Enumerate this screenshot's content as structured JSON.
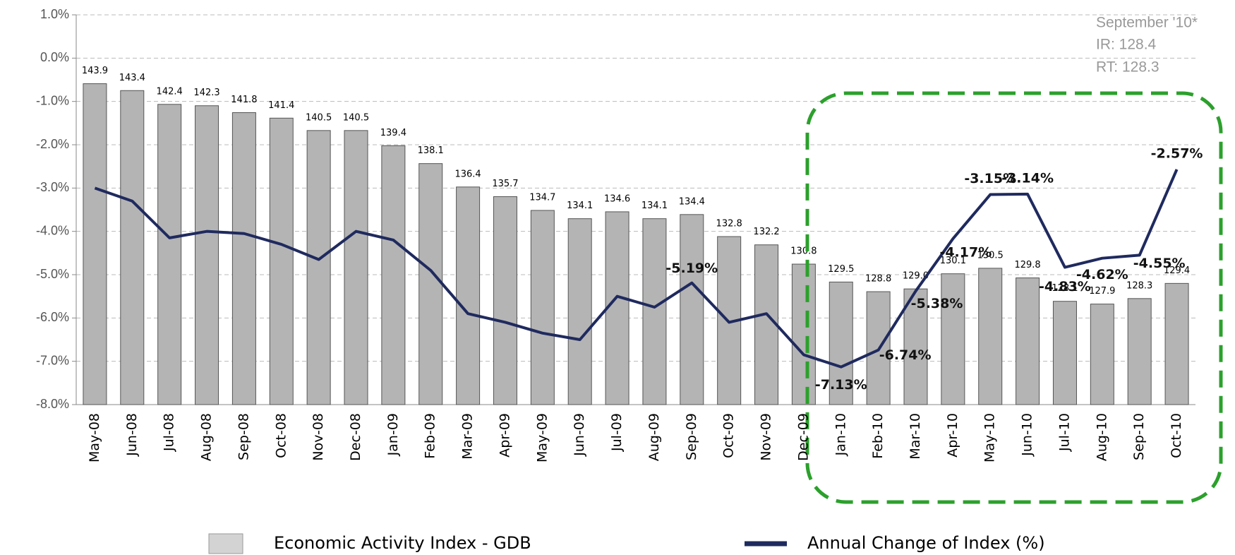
{
  "chart_data": {
    "type": "bar_line",
    "categories": [
      "May-08",
      "Jun-08",
      "Jul-08",
      "Aug-08",
      "Sep-08",
      "Oct-08",
      "Nov-08",
      "Dec-08",
      "Jan-09",
      "Feb-09",
      "Mar-09",
      "Apr-09",
      "May-09",
      "Jun-09",
      "Jul-09",
      "Aug-09",
      "Sep-09",
      "Oct-09",
      "Nov-09",
      "Dec-09",
      "Jan-10",
      "Feb-10",
      "Mar-10",
      "Apr-10",
      "May-10",
      "Jun-10",
      "Jul-10",
      "Aug-10",
      "Sep-10",
      "Oct-10"
    ],
    "series": [
      {
        "name": "Economic Activity Index - GDB",
        "type": "bar",
        "axis": "y2",
        "color": "#b4b4b4",
        "values": [
          143.9,
          143.4,
          142.4,
          142.3,
          141.8,
          141.4,
          140.5,
          140.5,
          139.4,
          138.1,
          136.4,
          135.7,
          134.7,
          134.1,
          134.6,
          134.1,
          134.4,
          132.8,
          132.2,
          130.8,
          129.5,
          128.8,
          129.0,
          130.1,
          130.5,
          129.8,
          128.1,
          127.9,
          128.3,
          129.4
        ],
        "value_labels": [
          "143.9",
          "143.4",
          "142.4",
          "142.3",
          "141.8",
          "141.4",
          "140.5",
          "140.5",
          "139.4",
          "138.1",
          "136.4",
          "135.7",
          "134.7",
          "134.1",
          "134.6",
          "134.1",
          "134.4",
          "132.8",
          "132.2",
          "130.8",
          "129.5",
          "128.8",
          "129.0",
          "130.1",
          "130.5",
          "129.8",
          "128.1",
          "127.9",
          "128.3",
          "129.4"
        ]
      },
      {
        "name": "Annual Change of Index (%)",
        "type": "line",
        "color": "#1f2a5e",
        "values": [
          -3.0,
          -3.3,
          -4.15,
          -4.0,
          -4.05,
          -4.3,
          -4.65,
          -4.0,
          -4.2,
          -4.9,
          -5.9,
          -6.1,
          -6.35,
          -6.5,
          -5.5,
          -5.75,
          -5.19,
          -6.1,
          -5.9,
          -6.85,
          -7.13,
          -6.74,
          -5.38,
          -4.17,
          -3.15,
          -3.14,
          -4.83,
          -4.62,
          -4.55,
          -2.57
        ],
        "value_labels": [
          null,
          null,
          null,
          null,
          null,
          null,
          null,
          null,
          null,
          null,
          null,
          null,
          null,
          null,
          null,
          null,
          "-5.19%",
          null,
          null,
          null,
          "-7.13%",
          "-6.74%",
          "-5.38%",
          "-4.17%",
          "-3.15%",
          "-3.14%",
          "-4.83%",
          "-4.62%",
          "-4.55%",
          "-2.57%"
        ]
      }
    ],
    "ylim": [
      -8.0,
      1.0
    ],
    "yticks": [
      {
        "value": 1.0,
        "label": "1.0%"
      },
      {
        "value": 0.0,
        "label": "0.0%"
      },
      {
        "value": -1.0,
        "label": "-1.0%"
      },
      {
        "value": -2.0,
        "label": "-2.0%"
      },
      {
        "value": -3.0,
        "label": "-3.0%"
      },
      {
        "value": -4.0,
        "label": "-4.0%"
      },
      {
        "value": -5.0,
        "label": "-5.0%"
      },
      {
        "value": -6.0,
        "label": "-6.0%"
      },
      {
        "value": -7.0,
        "label": "-7.0%"
      },
      {
        "value": -8.0,
        "label": "-8.0%"
      }
    ],
    "y2lim": [
      120.6,
      148.9
    ],
    "grid": true,
    "annotations": [
      "September '10*",
      "IR: 128.4",
      "RT: 128.3"
    ]
  }
}
